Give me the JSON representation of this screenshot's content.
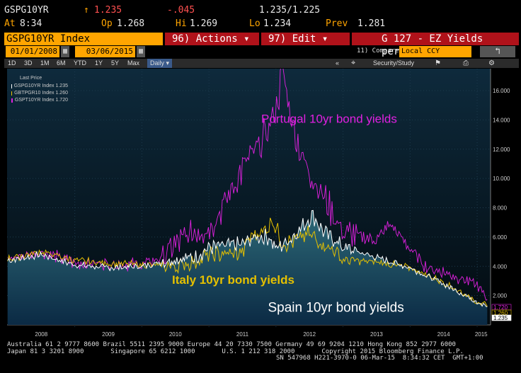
{
  "quote": {
    "ticker": "GSPG10YR",
    "arrow": "↑",
    "last": "1.235",
    "change": "-.045",
    "bid_ask": "1.235/1.225",
    "at_label": "At",
    "at_time": "8:34",
    "op_label": "Op",
    "open": "1.268",
    "hi_label": "Hi",
    "high": "1.269",
    "lo_label": "Lo",
    "low": "1.234",
    "prev_label": "Prev",
    "prev": "1.281"
  },
  "toolbar": {
    "security": "GSPG10YR Index",
    "actions": "96) Actions ▾",
    "edit": "97) Edit ▾",
    "chart_title": "G 127 - EZ Yields periphery"
  },
  "dates": {
    "start": "01/01/2008",
    "end": "03/06/2015",
    "compare_label": "11) Compare",
    "currency": "Local CCY",
    "cal_icon": "▦"
  },
  "periods": [
    "1D",
    "3D",
    "1M",
    "6M",
    "YTD",
    "1Y",
    "5Y",
    "Max"
  ],
  "frequency": "Daily ▾",
  "tools": {
    "security_study": "Security/Study",
    "arrows": "«",
    "back": "↰"
  },
  "legend": {
    "title": "Last Price",
    "items": [
      {
        "name": "GSPG10YR Index",
        "value": "1.235",
        "color": "#ffffff"
      },
      {
        "name": "GBTPGR10 Index",
        "value": "1.260",
        "color": "#e5c000"
      },
      {
        "name": "GSPT10YR Index",
        "value": "1.720",
        "color": "#e020e0"
      }
    ]
  },
  "chart_data": {
    "type": "line",
    "title": "G 127 - EZ Yields periphery",
    "xlabel": "",
    "ylabel": "",
    "ylim": [
      0,
      17.5
    ],
    "yticks": [
      "2.000",
      "4.000",
      "6.000",
      "8.000",
      "10.000",
      "12.000",
      "14.000",
      "16.000"
    ],
    "x_years": [
      "2008",
      "2009",
      "2010",
      "2011",
      "2012",
      "2013",
      "2014",
      "2015"
    ],
    "series": [
      {
        "name": "Portugal 10yr bond yields",
        "color": "#e020e0",
        "x": [
          2008.0,
          2008.5,
          2009.0,
          2009.5,
          2010.0,
          2010.3,
          2010.5,
          2010.8,
          2011.0,
          2011.2,
          2011.4,
          2011.55,
          2011.7,
          2011.85,
          2012.0,
          2012.1,
          2012.25,
          2012.4,
          2012.6,
          2012.8,
          2013.0,
          2013.5,
          2013.7,
          2014.0,
          2014.25,
          2014.5,
          2014.75,
          2015.0,
          2015.15
        ],
        "values": [
          4.5,
          5.0,
          4.2,
          4.2,
          4.1,
          4.6,
          5.5,
          6.4,
          6.6,
          8.0,
          9.8,
          11.1,
          11.8,
          13.0,
          14.8,
          17.3,
          13.7,
          11.3,
          9.7,
          8.0,
          6.3,
          5.8,
          6.9,
          5.2,
          3.9,
          3.6,
          3.2,
          2.7,
          1.72
        ]
      },
      {
        "name": "Italy 10yr bond yields",
        "color": "#e5c000",
        "x": [
          2008.0,
          2008.5,
          2009.0,
          2009.5,
          2010.0,
          2010.5,
          2010.8,
          2011.0,
          2011.5,
          2011.6,
          2011.85,
          2011.95,
          2012.1,
          2012.3,
          2012.5,
          2012.7,
          2012.9,
          2013.0,
          2013.5,
          2014.0,
          2014.5,
          2015.0,
          2015.15
        ],
        "values": [
          4.5,
          5.0,
          4.4,
          4.2,
          4.1,
          4.0,
          4.3,
          4.8,
          4.9,
          6.0,
          6.5,
          7.2,
          5.5,
          5.8,
          6.2,
          5.5,
          5.0,
          4.4,
          4.3,
          3.9,
          2.9,
          1.6,
          1.26
        ]
      },
      {
        "name": "Spain 10yr bond yields",
        "color": "#ffffff",
        "x": [
          2008.0,
          2008.5,
          2009.0,
          2009.5,
          2010.0,
          2010.5,
          2010.8,
          2011.0,
          2011.5,
          2011.7,
          2011.9,
          2012.0,
          2012.2,
          2012.45,
          2012.55,
          2012.7,
          2012.9,
          2013.0,
          2013.5,
          2014.0,
          2014.5,
          2015.0,
          2015.15
        ],
        "values": [
          4.4,
          4.8,
          4.1,
          3.9,
          4.0,
          4.5,
          4.6,
          5.3,
          5.5,
          6.0,
          6.0,
          5.2,
          5.8,
          7.0,
          7.5,
          6.4,
          5.7,
          5.3,
          4.6,
          3.9,
          2.8,
          1.6,
          1.235
        ]
      }
    ],
    "last_labels": [
      {
        "value": "1.720",
        "color": "#e020e0"
      },
      {
        "value": "1.260",
        "color": "#e5c000"
      },
      {
        "value": "1.235",
        "color": "#ffffff"
      }
    ],
    "annotations": [
      {
        "text": "Portugal 10yr bond yields",
        "color": "#e020e0"
      },
      {
        "text": "Italy 10yr bond yields",
        "color": "#e5c000"
      },
      {
        "text": "Spain 10yr bond yields",
        "color": "#ffffff"
      }
    ]
  },
  "footer": {
    "line1": "Australia 61 2 9777 8600 Brazil 5511 2395 9000 Europe 44 20 7330 7500 Germany 49 69 9204 1210 Hong Kong 852 2977 6000",
    "line2": "Japan 81 3 3201 8900       Singapore 65 6212 1000       U.S. 1 212 318 2000       Copyright 2015 Bloomberg Finance L.P.",
    "line3": "SN 547968 H221-3970-0 06-Mar-15  8:34:32 CET  GMT+1:00"
  }
}
